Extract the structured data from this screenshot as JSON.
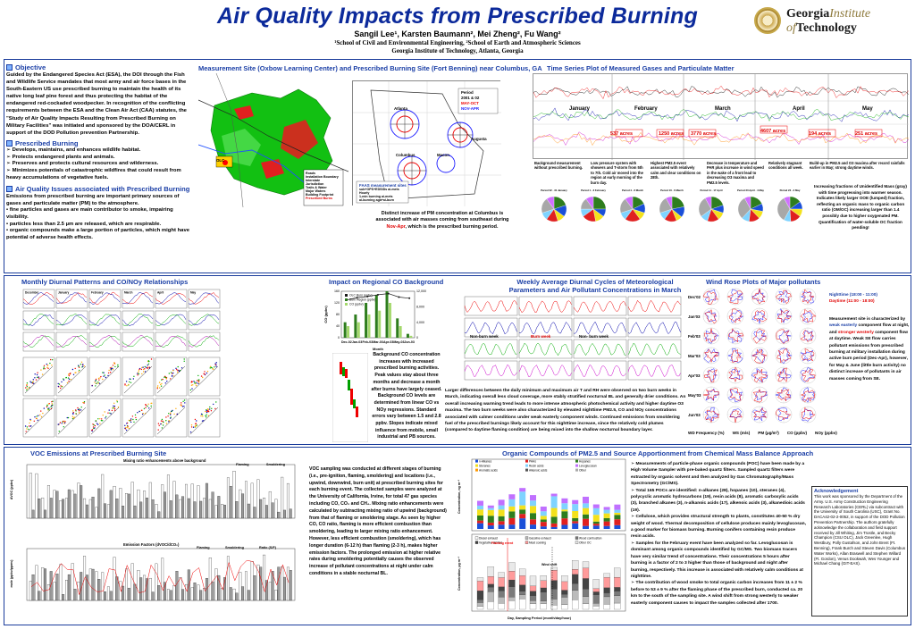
{
  "header": {
    "title": "Air Quality Impacts from Prescribed Burning",
    "authors": "Sangil Lee¹, Karsten Baumann², Mei Zheng², Fu Wang²",
    "affil1": "¹School of Civil and Environmental Engineering, ²School of Earth and Atmospheric Sciences",
    "affil2": "Georgia Institute of Technology, Atlanta, Georgia",
    "logo_line1": "Georgia",
    "logo_line1b": "Institute",
    "logo_line2": "of",
    "logo_line2b": "Technology"
  },
  "objective": {
    "heading": "Objective",
    "text": "Guided by the Endangered Species Act (ESA), the DOI through the Fish and Wildlife Service mandates that most army and air force  bases in the South-Eastern US use prescribed burning to maintain the health of its native long leaf pine forest and thus protecting the habitat of the endangered red-cockaded woodpecker. In recognition of the conflicting requirements between the ESA and the  Clean Air Act (CAA) statutes, the \"Study of Air Quality Impacts Resulting from Prescribed Burning on Military Facilities\" was initiated and sponsored by the DOA/CERL in support of the DOD Pollution prevention Partnership."
  },
  "prescribed": {
    "heading": "Prescribed Burning",
    "items": [
      "Develops, maintains, and enhances wildlife habitat.",
      "Protects endangered plants and animals.",
      "Preserves and protects cultural resources and wilderness.",
      "Minimizes potentials of catastrophic wildfires that could result from heavy accumulations of vegetative fuels."
    ]
  },
  "issues": {
    "heading": "Air Quality Issues associated with Prescribed Burning",
    "intro": "Emissions from prescribed burning are important primary sources of gases and particulate matter (PM) to the atmosphere.",
    "items": [
      "fine particles and gases are main contributor to smoke, impairing visibility.",
      "particles less than 2.5 µm are released, which are respirable.",
      "organic compounds make a large portion of particles, which might have potential of adverse health effects."
    ]
  },
  "site": {
    "title": "Measurement Site (Oxbow Learning Center) and Prescribed Burning Site (Fort Benning) near Columbus, GA",
    "legend_title": "FAAS measurement sites",
    "legend_items": [
      "sub+OPS+EDSIDs ai-mets",
      "Hourly",
      "1-min burning ai-mets",
      "ai-burning aga+ai-burn"
    ],
    "map_labels": {
      "olc": "OLC",
      "atlanta": "Atlanta",
      "columbus": "Columbus",
      "macon": "Macon",
      "augusta": "Augusta",
      "period": "Period",
      "period_years": "2001 & 02",
      "period_months": "MAY-OCT",
      "period_months2": "NOV-APR"
    },
    "map_legend": [
      "Roads",
      "Installation Boundary",
      "Interstate",
      "Jurisdiction",
      "Trails & Water",
      "Major Waters",
      "Building Footprint",
      "Prescribed Burns"
    ],
    "caption_a": "Distinct increase of PM concentration at Columbus is associated with air masses coming from southeast during ",
    "caption_hl": "Nov-Apr",
    "caption_b": ", which is the prescribed burning period."
  },
  "timeseries": {
    "title": "Time Series Plot of Measured Gases and Particulate Matter",
    "months": [
      "January",
      "February",
      "March",
      "April",
      "May"
    ],
    "acres": [
      "537 acres",
      "1250 acres",
      "3770 acres",
      "4607 acres",
      "194 acres",
      "251 acres"
    ],
    "notes": [
      "Background measurement without prescribed burning.",
      "Low pressure system with showers and T-storm from 5th to 7th. Cold air moved into the region at early morning of the burn day.",
      "Highest PM2.5 event associated with relatively calm and clear conditions on 28th.",
      "Decrease in temperature and PAR plus increase in wind speed in the wake of a front lead to decreasing O3 maxima and PM2.5 levels.",
      "Relatively stagnant conditions all week.",
      "Build-up in PM2.5 and O3 maxima after record rainfalls earlier in May; strong daytime winds."
    ],
    "right_note": "Increasing fractions of Unidentified Mass (gray) with time progressing into warmer season. Indicates likely larger OOE (lumped) fraction, reflecting an organic mass to organic carbon ratio (OM/OC) increasing larger than 1.4 possibly due to higher oxygenated PM. Quantification of water-soluble OC fraction pending!",
    "pie_labels": [
      "Period 02 - 31 January",
      "Period 1 - 3 February",
      "Period 4 - 6 March",
      "Period 10 - 6 March",
      "Period 11 - 17 April",
      "Period 20 April - 4 May",
      "Period 22 - 2 May"
    ]
  },
  "diurnal": {
    "title": "Monthly Diurnal Patterns and CO/NOy Relationships",
    "months": [
      "December",
      "January",
      "February",
      "March",
      "April",
      "May"
    ]
  },
  "regional": {
    "title": "Impact on Regional CO Background",
    "legend": [
      "OLC Burn (ppbv)",
      "Burn Region (ppbv)",
      "CO (ppbv)"
    ],
    "xlabel": "Month",
    "categories": [
      "Dec-02",
      "Jan-03",
      "Feb-03",
      "Mar-03",
      "Apr-03",
      "May-03",
      "Jun-03"
    ],
    "text": "Background CO concentration increases with increased prescribed burning activities. Peak values stay about three months and decrease a month after burns have largely ceased. Background CO levels are determined from linear CO vs NOy regressions. Standard errors vary between 1.5 and 2.8 ppbv. Slopes indicate mixed influence from mobile, small industrial and PB sources."
  },
  "chart_data": {
    "type": "bar",
    "title": "Impact on Regional CO Background",
    "xlabel": "Month",
    "ylabel": "CO (ppbv)",
    "categories": [
      "Dec-02",
      "Jan-03",
      "Feb-03",
      "Mar-03",
      "Apr-03",
      "May-03",
      "Jun-03"
    ],
    "ylim": [
      0,
      160
    ],
    "series": [
      {
        "name": "OLC Burn (ppbv)",
        "values": [
          130,
          138,
          142,
          148,
          152,
          140,
          136
        ]
      },
      {
        "name": "Burn Region (ppbv)",
        "values": [
          4000,
          6000,
          9000,
          11000,
          12000,
          5000,
          1000
        ]
      },
      {
        "name": "CO (ppbv)",
        "values": [
          3000,
          4000,
          6000,
          7000,
          9000,
          3000,
          500
        ]
      }
    ]
  },
  "weekly": {
    "title": "Weekly Average Diurnal Cycles of Meteorological Parameters and Air Pollutant Concentrations in March",
    "week_labels": [
      "Non-burn week",
      "Burn week",
      "Non- burn week"
    ],
    "text": "Larger differences between the daily minimum and maximum air T and RH were observed on two burn weeks in March, indicating overall less cloud coverage, more stably stratified nocturnal BL and generally drier conditions. An overall increasing warming trend leads to more intense atmospheric photochemical activity and higher daytime O3 maxima.  The two burn weeks were also characterized by elevated nighttime PM2.5, CO and NOy concentrations associated with calmer conditions under weak easterly component winds.  Continued emissions from smoldering fuel of the prescribed burnings likely account for this nighttime increase, since the relatively cold plumes (compared to daytime flaming condition) are being mixed into the shallow nocturnal boundary layer."
  },
  "windrose": {
    "title": "Wind Rose Plots of Major pollutants",
    "months": [
      "Dec'02",
      "Jan'03",
      "Feb'03",
      "Mar'03",
      "Apr'03",
      "May'03",
      "Jun'03"
    ],
    "nighttime": "Nighttime (18:00 - 11:00)",
    "daytime": "Daytime (11:00 - 18:00)",
    "text_a": "Measurement site is characterized by ",
    "weak": "weak easterly",
    "text_b": " component flow at night, and ",
    "strong": "stronger westerly",
    "text_c": " component flow at daytime.  Weak SE flow carries pollutant emissions from prescribed burning at military installation during active burn period (Dec-Apr), however, for May & June (little burn activity) no distinct increase of pollutants in air masses coming from SE.",
    "footer": [
      "WD Frequency (%)",
      "WS (m/s)",
      "PM (µg/m³)",
      "CO (ppbv)",
      "NOy (ppbv)"
    ]
  },
  "voc": {
    "title": "VOC Emissions at Prescribed Burning Site",
    "chart1_title": "Mixing ratio enhancements above background",
    "chart2_title": "Emission Factors (dVOC/dCO₂)",
    "legend": [
      "Flaming",
      "Smoldering"
    ],
    "legend2": [
      "Flaming",
      "Smoldering",
      "Ratio (S/F)"
    ],
    "ylabel1": "ΔVOC (ppbv)",
    "ylabel2": "mole (ppbv/ppmv)",
    "text": "VOC sampling was conducted at different stages of burning (i.e., pre-ignition, flaming, smoldering) and locations (i.e., upwind, downwind, burn unit) at prescribed burning sites for each burning event.  The collected samples were analyzed at the University of California, Irvine, for total 47 gas species including CO, CO₂ and CH₄.  Mixing ratio enhancements were calculated by subtracting mixing ratio of upwind (background) from that of flaming or smoldering stage.  As seen by higher CO, CO ratio, flaming is more efficient combustion than smoldering, leading to larger mixing ratio enhancement.  However, less efficient combustion (smoldering), which has longer duration (6-12 h) than flaming (2-3 h), makes higher emission factors.  The prolonged emission at higher relative rates during smoldering potentially causes the observed increase of pollutant concentrations at night under calm conditions in a stable nocturnal BL."
  },
  "organic": {
    "title": "Organic Compounds of PM2.5 and Source Apportionment from Chemical Mass Balance Approach",
    "legend": [
      "n-Alkanes",
      "PAHs",
      "Hopanes",
      "Steranes",
      "Resin acids",
      "Levoglucosan",
      "Aromatic acids",
      "Alkanoic acids",
      "Other"
    ],
    "legend2": [
      "Diesel exhaust",
      "Gasoline exhaust",
      "Wood combustion",
      "Vegetative detritus",
      "Meat cooking",
      "Other OC"
    ],
    "ylabel1": "Concentration, ng m⁻³",
    "ylabel2": "Concentration, µg m⁻³",
    "xlabel": "Day, Sampling Period (month/day/hour)",
    "flaming": "Flaming event",
    "wind": "Wind shift",
    "points": [
      "Measurements of particle-phase organic compounds (POC) have been made by a High Volume Sampler with pre-baked quartz filters.  Sampled quartz filters were extracted by organic solvent and then analyzed by Gas Chromatography/Mass Spectrometry (GC/MS).",
      "Total 165 POCs are identified: n-alkanes (28), hopanes (10), steranes (4), polycyclic aromatic hydrocarbons (19), resin acids (8), aromatic carboxylic acids (3), branched alkanes (3), n-alkanoic acids (17), alkenoic acids (3), alkanedioic acids (19).",
      "Cellulose, which provides structural strength to plants, constitutes 40-50 % dry weight of wood.  Thermal decomposition of cellulose produces mainly levoglucosan, a good marker for biomass burning.  Burning conifers containing resin produce resin acids.",
      "Samples for the February event have been analyzed so far.  Levoglucosan is dominant among organic compounds identified by GC/MS. Two biomass tracers have very similar trend of concentrations.  Their concentrations 5 hours after burning is a factor of 2 to 3 higher than those of background and night after burning, respectively. This increase is associated with relatively calm conditions at nighttime.",
      "The contribution of wood smoke to total organic carbon increases from 11 ± 2 % before to 53 ± 9 % after the flaming phase of the prescribed burn, conducted ca. 20 km to the south of the sampling site.  A wind shift from strong westerly to weaker easterly component causes to impact the samples collected after 1700."
    ],
    "levoglucosan": "levoglucosan",
    "resin_acids": "resin acids",
    "levoglucosan2": "Levoglucosan"
  },
  "ack": {
    "heading": "Acknowledgement",
    "text": "This work was sponsored by the Department of the Army. U.S. Army Construction Engineering Research Laboratories  (CERL) via subcontract with the University of South Carolina (USC), Grant No. DACA42-02-2-0052, in support of the DOD Pollution Prevention Partnership.  The authors gratefully acknowledge the collaboration and field support received by Jill Whiting, Jim Trostle, and Becky Champion (CSU OLC), Jack Greenlee, Hugh Westbury, Polly Gustafson, and John Brent (Ft. Benning), Frank Burch and Steven Davis (Columbus Water Works), Allan Braswell and Stephen Willard (Ft. Gordon), Venus Dookwah, Wes Younger and Michael Chang (GIT-EAS)."
  },
  "colors": {
    "title": "#0c2a9b",
    "panel_border": "#1b3d9c",
    "heading": "#1b3fa6",
    "accent_red": "#e00000",
    "accent_orange": "#ff7700"
  }
}
